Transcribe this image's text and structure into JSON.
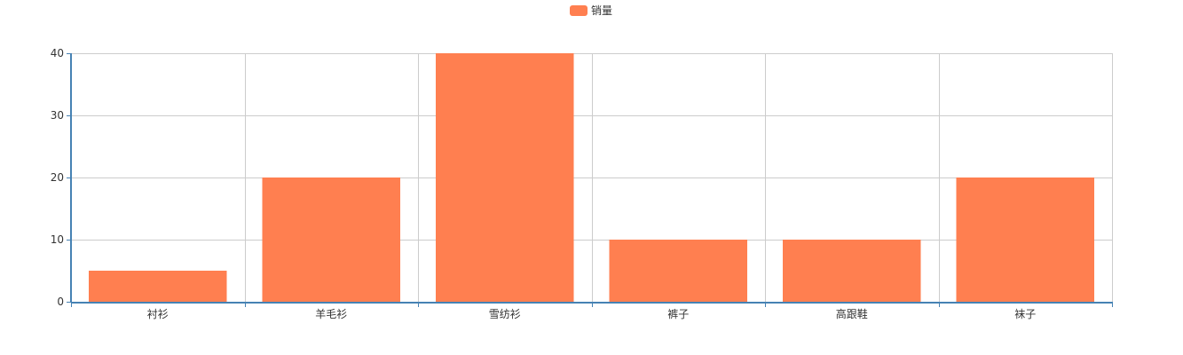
{
  "chart_data": {
    "type": "bar",
    "categories": [
      "衬衫",
      "羊毛衫",
      "雪纺衫",
      "裤子",
      "高跟鞋",
      "袜子"
    ],
    "series": [
      {
        "name": "销量",
        "values": [
          5,
          20,
          40,
          10,
          10,
          20
        ]
      }
    ],
    "ylim": [
      0,
      40
    ],
    "yticks": [
      0,
      10,
      20,
      30,
      40
    ],
    "grid": true,
    "legend_position": "top-center",
    "colors": {
      "bar": "#FF7F50",
      "axis": "#4682B4",
      "grid": "#CCCCCC",
      "text": "#333333"
    }
  }
}
